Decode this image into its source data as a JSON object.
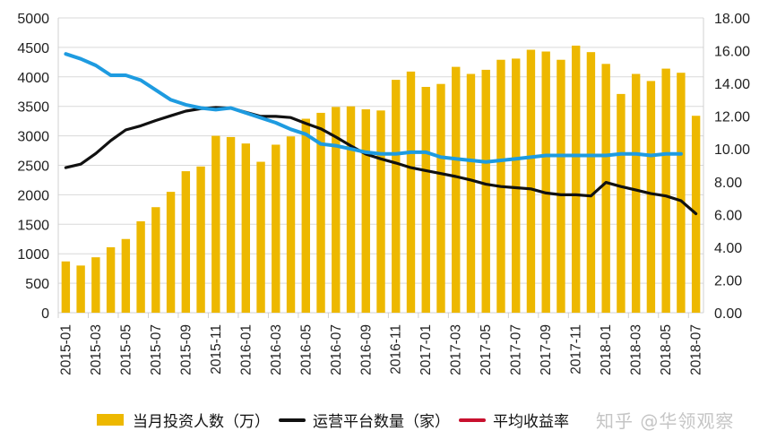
{
  "chart_data": {
    "type": "bar+line",
    "categories": [
      "2015-01",
      "2015-02",
      "2015-03",
      "2015-04",
      "2015-05",
      "2015-06",
      "2015-07",
      "2015-08",
      "2015-09",
      "2015-10",
      "2015-11",
      "2015-12",
      "2016-01",
      "2016-02",
      "2016-03",
      "2016-04",
      "2016-05",
      "2016-06",
      "2016-07",
      "2016-08",
      "2016-09",
      "2016-10",
      "2016-11",
      "2016-12",
      "2017-01",
      "2017-02",
      "2017-03",
      "2017-04",
      "2017-05",
      "2017-06",
      "2017-07",
      "2017-08",
      "2017-09",
      "2017-10",
      "2017-11",
      "2017-12",
      "2018-01",
      "2018-02",
      "2018-03",
      "2018-04",
      "2018-05",
      "2018-06",
      "2018-07"
    ],
    "series": [
      {
        "name": "当月投资人数（万）",
        "type": "bar",
        "axis": "left",
        "color": "#EDB800",
        "values": [
          870,
          800,
          940,
          1110,
          1250,
          1550,
          1790,
          2050,
          2400,
          2480,
          3000,
          2980,
          2870,
          2560,
          2850,
          2990,
          3290,
          3390,
          3490,
          3500,
          3450,
          3430,
          3950,
          4090,
          3830,
          3880,
          4170,
          4050,
          4120,
          4290,
          4310,
          4460,
          4430,
          4290,
          4530,
          4420,
          4220,
          3710,
          4050,
          3930,
          4140,
          4070,
          3340
        ]
      },
      {
        "name": "运营平台数量（家）",
        "type": "line",
        "axis": "left",
        "color": "#111111",
        "values": [
          2460,
          2520,
          2700,
          2920,
          3100,
          3170,
          3260,
          3340,
          3420,
          3460,
          3480,
          3470,
          3400,
          3330,
          3330,
          3310,
          3210,
          3120,
          2980,
          2830,
          2690,
          2610,
          2540,
          2460,
          2410,
          2360,
          2310,
          2250,
          2180,
          2140,
          2120,
          2100,
          2030,
          2000,
          2000,
          1980,
          2210,
          2140,
          2080,
          2020,
          1980,
          1900,
          1680
        ]
      },
      {
        "name": "平均收益率",
        "type": "line",
        "axis": "right",
        "color": "#1E9BE0",
        "legend_color": "#C8102E",
        "values": [
          15.8,
          15.5,
          15.1,
          14.5,
          14.5,
          14.2,
          13.6,
          13.0,
          12.7,
          12.5,
          12.4,
          12.5,
          12.2,
          11.9,
          11.6,
          11.2,
          10.9,
          10.3,
          10.2,
          10.0,
          9.8,
          9.7,
          9.7,
          9.8,
          9.8,
          9.5,
          9.4,
          9.3,
          9.2,
          9.3,
          9.4,
          9.5,
          9.6,
          9.6,
          9.6,
          9.6,
          9.6,
          9.7,
          9.7,
          9.6,
          9.7,
          9.7,
          null
        ]
      }
    ],
    "left_axis": {
      "ylim": [
        0,
        5000
      ],
      "ticks": [
        "0",
        "500",
        "1000",
        "1500",
        "2000",
        "2500",
        "3000",
        "3500",
        "4000",
        "4500",
        "5000"
      ]
    },
    "right_axis": {
      "ylim": [
        0,
        18
      ],
      "ticks": [
        "0.00",
        "2.00",
        "4.00",
        "6.00",
        "8.00",
        "10.00",
        "12.00",
        "14.00",
        "16.00",
        "18.00"
      ]
    },
    "grid": true,
    "legend_position": "bottom",
    "title": "",
    "xlabel": "",
    "ylabel": ""
  },
  "watermark": "知乎 @华领观察"
}
